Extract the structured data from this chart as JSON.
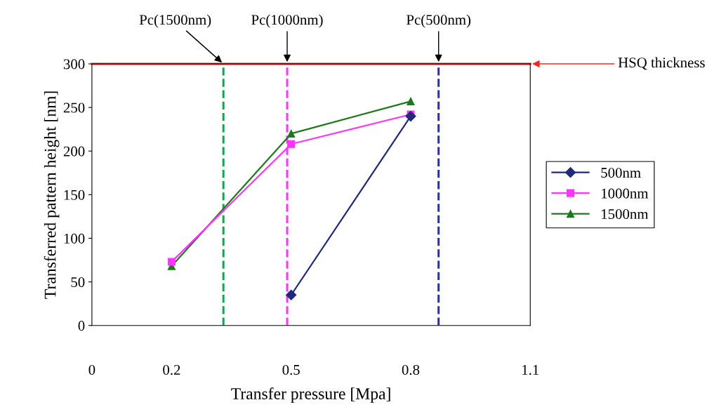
{
  "chart_data": {
    "type": "line",
    "xlabel": "Transfer pressure [Mpa]",
    "ylabel": "Transferred pattern height [nm]",
    "xlim": [
      0,
      1.1
    ],
    "xticks": [
      0,
      0.2,
      0.5,
      0.8,
      1.1
    ],
    "ylim": [
      0,
      300
    ],
    "yticks": [
      0,
      50,
      100,
      150,
      200,
      250,
      300
    ],
    "grid": false,
    "legend": "right",
    "series": [
      {
        "name": "500nm",
        "color": "#1f2a7a",
        "marker": "diamond",
        "x": [
          0.5,
          0.8
        ],
        "values": [
          35,
          240
        ]
      },
      {
        "name": "1000nm",
        "color": "#ff33ff",
        "marker": "square",
        "x": [
          0.2,
          0.5,
          0.8
        ],
        "values": [
          73,
          208,
          242
        ]
      },
      {
        "name": "1500nm",
        "color": "#1a7a1a",
        "marker": "triangle",
        "x": [
          0.2,
          0.5,
          0.8
        ],
        "values": [
          68,
          220,
          257
        ]
      }
    ],
    "ref_lines": [
      {
        "axis": "y",
        "value": 300,
        "label": "HSQ thickness",
        "color": "#ff2020",
        "line_style": "solid"
      },
      {
        "axis": "x",
        "value": 0.33,
        "label": "Pc(1500nm)",
        "color": "#00b050",
        "line_style": "dashed"
      },
      {
        "axis": "x",
        "value": 0.49,
        "label": "Pc(1000nm)",
        "color": "#ff33ff",
        "line_style": "dashed"
      },
      {
        "axis": "x",
        "value": 0.87,
        "label": "Pc(500nm)",
        "color": "#3030a0",
        "line_style": "dashed"
      }
    ]
  }
}
